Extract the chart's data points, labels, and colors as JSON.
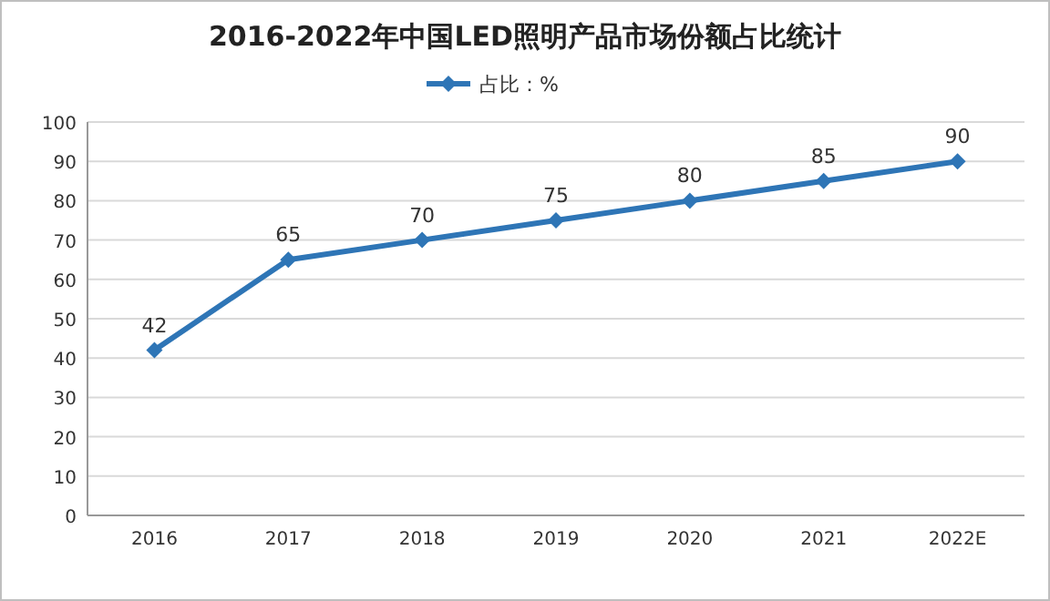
{
  "chart_data": {
    "type": "line",
    "title": "2016-2022年中国LED照明产品市场份额占比统计",
    "categories": [
      "2016",
      "2017",
      "2018",
      "2019",
      "2020",
      "2021",
      "2022E"
    ],
    "series": [
      {
        "name": "占比：%",
        "color": "#2e75b6",
        "values": [
          42,
          65,
          70,
          75,
          80,
          85,
          90
        ]
      }
    ],
    "ylim": [
      0,
      100
    ],
    "yticks": [
      0,
      10,
      20,
      30,
      40,
      50,
      60,
      70,
      80,
      90,
      100
    ],
    "grid": "y",
    "legend": "top",
    "marker": "diamond",
    "line_style": "solid",
    "data_labels": true
  }
}
